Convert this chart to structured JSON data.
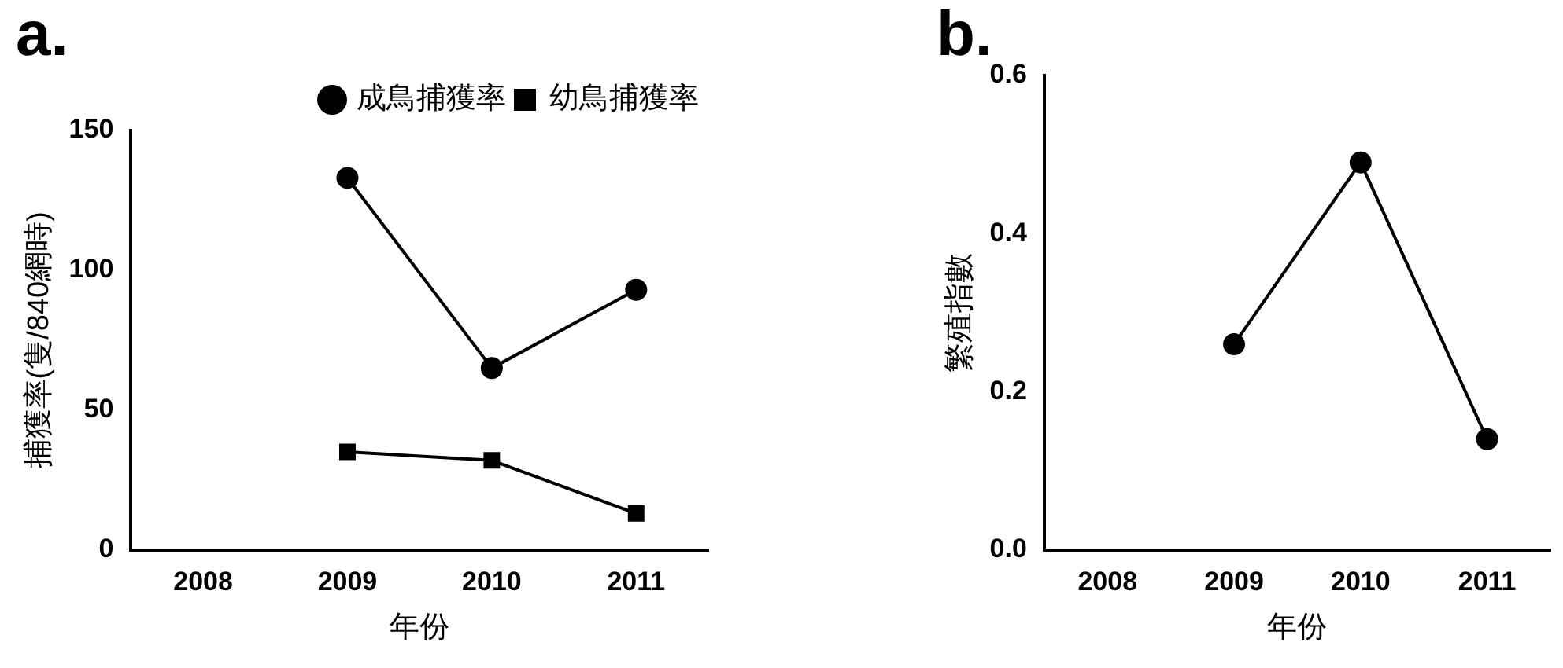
{
  "chart_data": [
    {
      "type": "line",
      "title": "a.",
      "xlabel": "年份",
      "ylabel": "捕獲率(隻/840網時)",
      "categories": [
        "2008",
        "2009",
        "2010",
        "2011"
      ],
      "series": [
        {
          "name": "成鳥捕獲率",
          "color": "#000000",
          "marker": "circle",
          "values": [
            null,
            133,
            65,
            93
          ]
        },
        {
          "name": "幼鳥捕獲率",
          "color": "#000000",
          "marker": "square",
          "values": [
            null,
            35,
            32,
            13
          ]
        }
      ],
      "ylim": [
        0,
        150
      ],
      "yticks": [
        0,
        50,
        100,
        150
      ],
      "grid": false,
      "legend": "top right"
    },
    {
      "type": "line",
      "title": "b.",
      "xlabel": "年份",
      "ylabel": "繁殖指數",
      "categories": [
        "2008",
        "2009",
        "2010",
        "2011"
      ],
      "series": [
        {
          "color": "#000000",
          "marker": "circle",
          "values": [
            null,
            0.26,
            0.49,
            0.14
          ]
        }
      ],
      "ylim": [
        0,
        0.6
      ],
      "yticks": [
        {
          "value": 0,
          "label": "0.0"
        },
        {
          "value": 0.2,
          "label": "0.2"
        },
        {
          "value": 0.4,
          "label": "0.4"
        },
        {
          "value": 0.6,
          "label": "0.6"
        }
      ],
      "grid": false,
      "legend": false
    }
  ]
}
